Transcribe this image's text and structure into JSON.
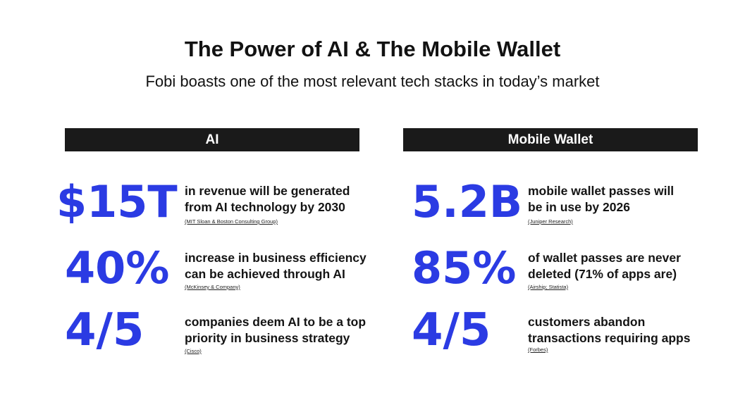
{
  "title": "The Power of AI & The Mobile Wallet",
  "subtitle": "Fobi boasts one of the most relevant tech stacks in today’s market",
  "colors": {
    "accent": "#2b3be3",
    "header_bg": "#1a1a1a",
    "header_text": "#ffffff",
    "text": "#141414"
  },
  "ai": {
    "header": "AI",
    "stats": [
      {
        "value": "$15T",
        "line1": "in revenue will be generated",
        "line2": "from AI technology by 2030",
        "source": "(MIT Sloan & Boston Consulting Group)"
      },
      {
        "value": "40%",
        "line1": "increase in business efficiency",
        "line2": "can be achieved through AI",
        "source": "(McKinsey & Company)"
      },
      {
        "value": "4/5",
        "line1": "companies deem AI to be a top",
        "line2": "priority in business strategy",
        "source": "(Cisco)"
      }
    ]
  },
  "mobile_wallet": {
    "header": "Mobile Wallet",
    "stats": [
      {
        "value": "5.2B",
        "line1": "mobile wallet passes will",
        "line2": "be in use by 2026",
        "source": "(Juniper Research)"
      },
      {
        "value": "85%",
        "line1": "of wallet passes are never",
        "line2": "deleted (71% of apps are)",
        "source": "(Airship; Statista)"
      },
      {
        "value": "4/5",
        "line1": "customers abandon",
        "line2": "transactions requiring apps",
        "source": "(Forbes)"
      }
    ]
  }
}
